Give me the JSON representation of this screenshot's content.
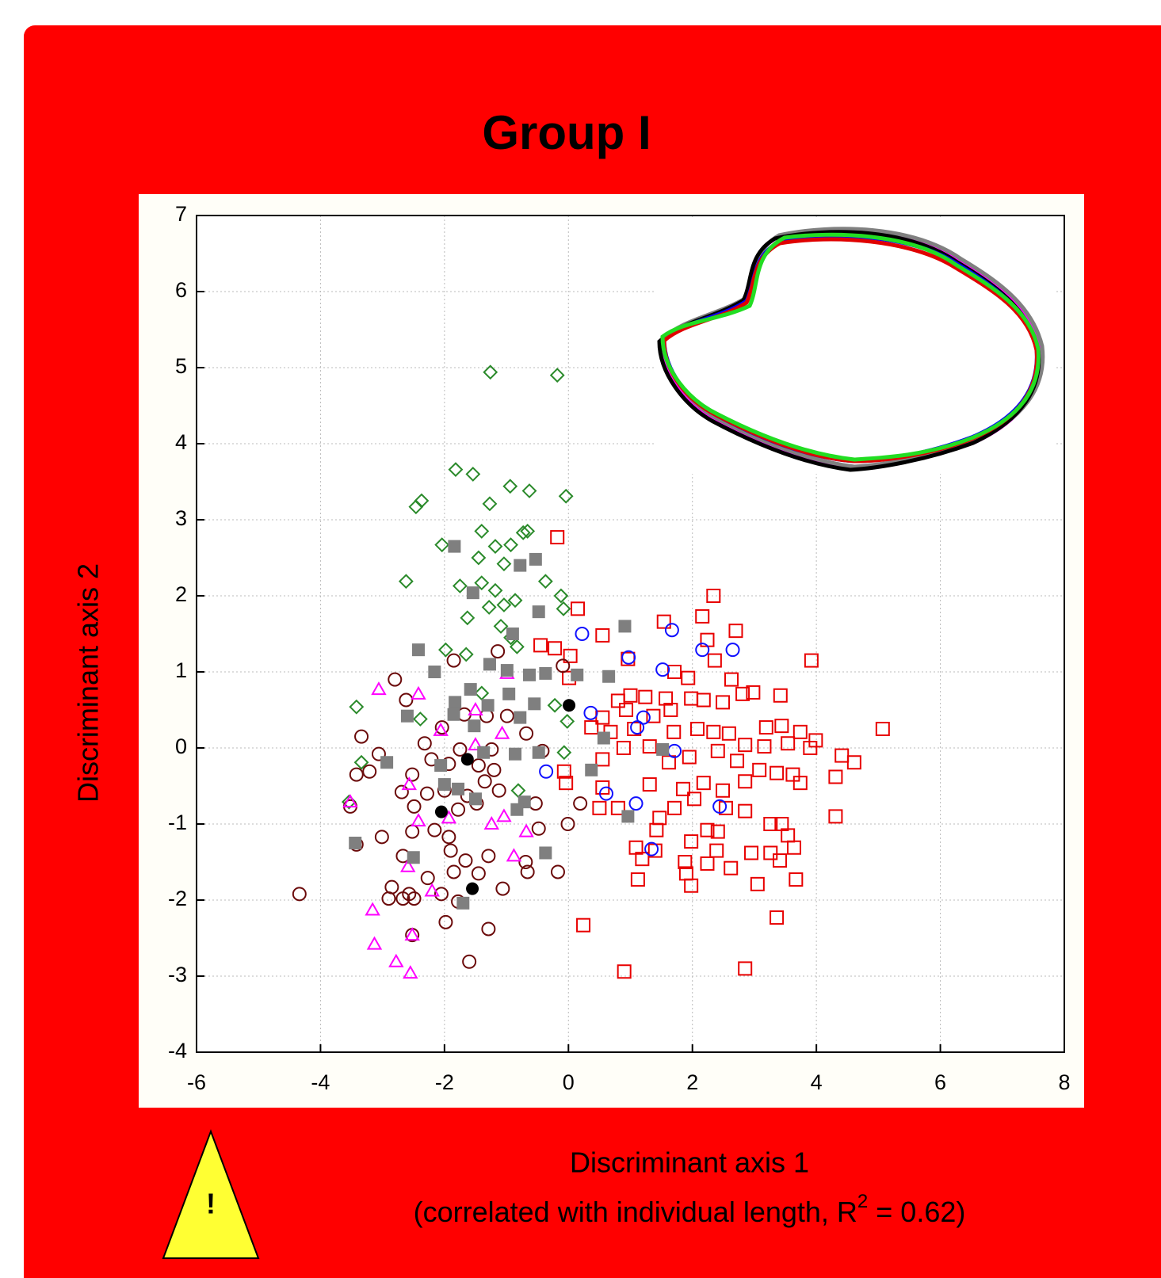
{
  "chart_data": {
    "type": "scatter",
    "title": "Group I",
    "x_label": "Discriminant axis 1",
    "x_label_note": {
      "before": "(correlated with individual length, R",
      "superscript": "2",
      "after": " = 0.62)"
    },
    "y_label": "Discriminant axis 2",
    "xlim": [
      -6,
      8
    ],
    "ylim": [
      -4,
      7
    ],
    "xticks": [
      -6,
      -4,
      -2,
      0,
      2,
      4,
      6,
      8
    ],
    "yticks": [
      -4,
      -3,
      -2,
      -1,
      0,
      1,
      2,
      3,
      4,
      5,
      6,
      7
    ],
    "grid": true,
    "series": [
      {
        "color": "#2a8a2a",
        "marker": "diamond",
        "filled": false,
        "x": [
          -1.26,
          -0.18,
          -1.82,
          -1.54,
          -0.94,
          -0.63,
          -0.04,
          -2.46,
          -2.37,
          -1.27,
          -1.4,
          -0.73,
          -0.66,
          -2.04,
          -1.18,
          -0.93,
          -1.45,
          -1.04,
          -2.62,
          -1.75,
          -1.4,
          -1.18,
          -0.37,
          -0.12,
          -0.86,
          -1.04,
          -1.28,
          -0.08,
          -1.63,
          -1.09,
          -0.93,
          -1.98,
          -1.65,
          -0.83,
          -3.42,
          -2.39,
          -1.4,
          -0.22,
          -0.02,
          -0.07,
          -3.34,
          -0.81,
          -3.54
        ],
        "y": [
          4.94,
          4.9,
          3.66,
          3.6,
          3.44,
          3.38,
          3.31,
          3.17,
          3.25,
          3.21,
          2.85,
          2.83,
          2.85,
          2.67,
          2.65,
          2.67,
          2.5,
          2.42,
          2.19,
          2.13,
          2.17,
          2.07,
          2.19,
          2.0,
          1.94,
          1.88,
          1.85,
          1.83,
          1.71,
          1.6,
          1.45,
          1.29,
          1.23,
          1.33,
          0.54,
          0.38,
          0.72,
          0.56,
          0.35,
          -0.06,
          -0.19,
          -0.56,
          -0.71
        ]
      },
      {
        "color": "#e80000",
        "marker": "square",
        "filled": false,
        "x": [
          -0.18,
          2.34,
          0.15,
          1.54,
          2.16,
          2.7,
          0.55,
          2.24,
          -0.45,
          -0.22,
          3.92,
          0.96,
          2.36,
          0.03,
          1.71,
          1.93,
          2.63,
          0.01,
          2.81,
          2.98,
          3.42,
          0.8,
          1.0,
          1.24,
          1.57,
          1.98,
          2.18,
          2.49,
          0.55,
          0.93,
          1.37,
          1.65,
          5.07,
          3.19,
          3.44,
          3.74,
          3.99,
          0.37,
          0.68,
          1.06,
          1.7,
          2.08,
          2.34,
          2.59,
          2.85,
          3.16,
          3.54,
          3.9,
          4.41,
          4.61,
          0.55,
          0.89,
          1.31,
          1.62,
          1.95,
          2.41,
          2.72,
          3.08,
          3.36,
          3.62,
          4.31,
          -0.07,
          -0.04,
          0.55,
          1.31,
          1.85,
          2.18,
          2.49,
          2.85,
          3.74,
          0.5,
          0.8,
          1.71,
          2.03,
          2.54,
          2.85,
          4.31,
          1.47,
          3.26,
          3.44,
          1.42,
          2.24,
          2.41,
          3.54,
          1.98,
          1.09,
          1.4,
          2.39,
          2.95,
          3.26,
          3.64,
          1.19,
          1.88,
          2.24,
          2.62,
          1.9,
          3.41,
          1.12,
          1.98,
          3.05,
          3.67,
          3.36,
          0.24,
          0.9,
          2.85
        ],
        "y": [
          2.77,
          2.0,
          1.83,
          1.66,
          1.73,
          1.54,
          1.48,
          1.42,
          1.35,
          1.31,
          1.15,
          1.17,
          1.15,
          1.21,
          1.0,
          0.92,
          0.9,
          0.92,
          0.71,
          0.73,
          0.69,
          0.62,
          0.69,
          0.67,
          0.65,
          0.65,
          0.63,
          0.6,
          0.4,
          0.5,
          0.42,
          0.5,
          0.25,
          0.27,
          0.29,
          0.21,
          0.1,
          0.27,
          0.21,
          0.25,
          0.21,
          0.25,
          0.21,
          0.19,
          0.04,
          0.02,
          0.06,
          0.0,
          -0.1,
          -0.19,
          -0.15,
          0.0,
          0.02,
          -0.19,
          -0.12,
          -0.04,
          -0.17,
          -0.29,
          -0.33,
          -0.35,
          -0.38,
          -0.31,
          -0.46,
          -0.52,
          -0.48,
          -0.54,
          -0.46,
          -0.56,
          -0.44,
          -0.46,
          -0.79,
          -0.79,
          -0.79,
          -0.67,
          -0.79,
          -0.83,
          -0.9,
          -0.92,
          -1.0,
          -1.0,
          -1.08,
          -1.08,
          -1.1,
          -1.15,
          -1.23,
          -1.31,
          -1.35,
          -1.35,
          -1.38,
          -1.38,
          -1.31,
          -1.46,
          -1.5,
          -1.52,
          -1.58,
          -1.65,
          -1.48,
          -1.73,
          -1.81,
          -1.79,
          -1.73,
          -2.23,
          -2.33,
          -2.94,
          -2.9
        ]
      },
      {
        "color": "#1010ff",
        "marker": "circle",
        "filled": false,
        "x": [
          0.22,
          1.67,
          2.16,
          2.65,
          0.97,
          1.52,
          0.36,
          1.11,
          1.21,
          1.71,
          -0.36,
          0.61,
          1.09,
          2.44,
          1.34
        ],
        "y": [
          1.5,
          1.55,
          1.29,
          1.29,
          1.19,
          1.03,
          0.46,
          0.27,
          0.4,
          -0.04,
          -0.31,
          -0.6,
          -0.73,
          -0.77,
          -1.33
        ]
      },
      {
        "color": "#6b0a0a",
        "marker": "circle",
        "filled": false,
        "x": [
          -4.34,
          -2.8,
          -1.85,
          -1.14,
          -0.09,
          -2.62,
          -3.34,
          -2.04,
          -1.68,
          -1.32,
          -0.99,
          -2.32,
          -1.75,
          -1.24,
          -0.68,
          -0.42,
          -3.21,
          -3.42,
          -3.06,
          -2.21,
          -2.52,
          -1.93,
          -1.45,
          -1.2,
          -2.69,
          -2.28,
          -2.0,
          -1.63,
          -1.35,
          -1.12,
          -3.52,
          -2.49,
          -1.78,
          -1.48,
          -0.53,
          0.19,
          -0.01,
          -2.52,
          -2.16,
          -1.93,
          -3.01,
          -3.42,
          -0.48,
          -2.67,
          -1.9,
          -1.29,
          -1.66,
          -0.69,
          -2.27,
          -1.85,
          -1.45,
          -0.66,
          -0.17,
          -2.85,
          -2.57,
          -2.67,
          -2.49,
          -2.9,
          -2.05,
          -1.78,
          -1.06,
          -1.98,
          -1.29,
          -2.52,
          -1.6
        ],
        "y": [
          -1.92,
          0.9,
          1.15,
          1.27,
          1.08,
          0.63,
          0.15,
          0.27,
          0.44,
          0.42,
          0.42,
          0.06,
          -0.02,
          -0.02,
          0.19,
          -0.04,
          -0.31,
          -0.35,
          -0.08,
          -0.15,
          -0.35,
          -0.21,
          -0.23,
          -0.29,
          -0.58,
          -0.6,
          -0.56,
          -0.63,
          -0.44,
          -0.56,
          -0.77,
          -0.77,
          -0.81,
          -0.73,
          -0.73,
          -0.73,
          -1.0,
          -1.1,
          -1.08,
          -1.17,
          -1.17,
          -1.27,
          -1.06,
          -1.42,
          -1.35,
          -1.42,
          -1.48,
          -1.5,
          -1.71,
          -1.63,
          -1.65,
          -1.63,
          -1.63,
          -1.83,
          -1.92,
          -1.98,
          -1.98,
          -1.98,
          -1.92,
          -2.02,
          -1.85,
          -2.29,
          -2.38,
          -2.46,
          -2.81
        ]
      },
      {
        "color": "#ff00ff",
        "marker": "triangle",
        "filled": false,
        "x": [
          -3.06,
          -2.42,
          -2.06,
          -1.07,
          -1.5,
          -0.99,
          -1.5,
          -2.57,
          -1.93,
          -3.52,
          -2.42,
          -1.24,
          -1.04,
          -0.68,
          -2.59,
          -0.88,
          -2.2,
          -3.16,
          -3.13,
          -2.78,
          -2.55,
          -2.52
        ],
        "y": [
          0.77,
          0.71,
          0.23,
          0.19,
          0.5,
          0.98,
          0.04,
          -0.48,
          -0.92,
          -0.71,
          -0.96,
          -1.0,
          -0.9,
          -1.1,
          -1.56,
          -1.42,
          -1.88,
          -2.13,
          -2.58,
          -2.81,
          -2.96,
          -2.46
        ]
      },
      {
        "color": "#7f7f7f",
        "marker": "square",
        "filled": true,
        "x": [
          -1.84,
          -0.78,
          -0.53,
          -1.54,
          -0.48,
          0.91,
          -0.9,
          -2.42,
          -1.27,
          -2.16,
          -0.99,
          -0.63,
          -0.37,
          0.14,
          0.65,
          -1.58,
          -0.96,
          -1.83,
          -1.3,
          -0.55,
          -2.6,
          -1.85,
          -1.52,
          -0.78,
          0.57,
          1.52,
          -1.37,
          -0.86,
          -0.48,
          -2.93,
          -2.06,
          0.37,
          -2.0,
          -1.78,
          -1.5,
          -0.71,
          -0.83,
          0.96,
          -3.44,
          -0.37,
          -2.5,
          -1.7
        ],
        "y": [
          2.65,
          2.4,
          2.48,
          2.04,
          1.79,
          1.6,
          1.5,
          1.29,
          1.1,
          1.0,
          1.02,
          0.96,
          0.98,
          0.96,
          0.94,
          0.77,
          0.71,
          0.6,
          0.56,
          0.58,
          0.42,
          0.44,
          0.29,
          0.4,
          0.13,
          -0.02,
          -0.06,
          -0.08,
          -0.06,
          -0.19,
          -0.23,
          -0.29,
          -0.48,
          -0.54,
          -0.67,
          -0.71,
          -0.81,
          -0.9,
          -1.25,
          -1.38,
          -1.44,
          -2.04
        ]
      },
      {
        "color": "#000000",
        "marker": "circle",
        "filled": true,
        "x": [
          0.01,
          -1.63,
          -2.05,
          -1.55
        ],
        "y": [
          0.56,
          -0.15,
          -0.84,
          -1.85
        ]
      }
    ]
  },
  "warning": {
    "label": "!"
  }
}
